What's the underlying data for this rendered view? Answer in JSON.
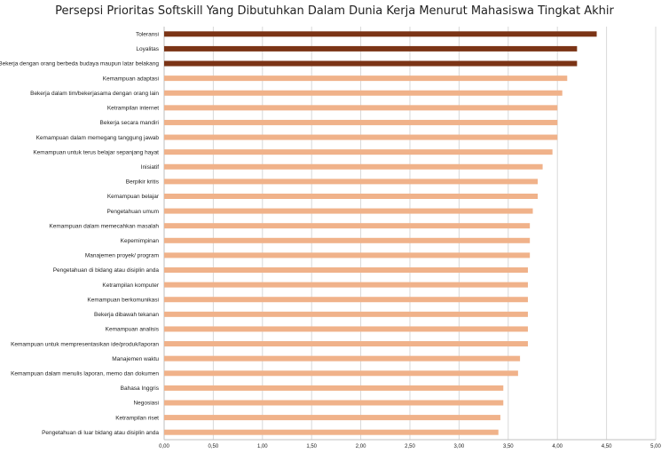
{
  "chart_data": {
    "type": "bar",
    "orientation": "horizontal",
    "title": "Persepsi Prioritas Softskill Yang Dibutuhkan Dalam Dunia Kerja Menurut Mahasiswa Tingkat Akhir",
    "xlabel": "",
    "ylabel": "",
    "xlim": [
      0,
      5
    ],
    "grid": "vertical",
    "legend": "none",
    "x_ticks": [
      "0,00",
      "0,50",
      "1,00",
      "1,50",
      "2,00",
      "2,50",
      "3,00",
      "3,50",
      "4,00",
      "4,50",
      "5,00"
    ],
    "colors": {
      "highlight": "#7b3416",
      "normal": "#f0b28a",
      "grid": "#d9d9d9",
      "axis": "#bfbfbf"
    },
    "categories": [
      "Toleransi",
      "Loyalitas",
      "Bekerja dengan orang berbeda budaya maupun latar belakang",
      "Kemampuan adaptasi",
      "Bekerja dalam tim/bekerjasama dengan orang lain",
      "Ketrampilan internet",
      "Bekerja secara mandiri",
      "Kemampuan dalam memegang tanggung jawab",
      "Kemampuan untuk terus belajar sepanjang hayat",
      "Inisiatif",
      "Berpikir kritis",
      "Kemampuan belajar",
      "Pengetahuan umum",
      "Kemampuan dalam memecahkan masalah",
      "Kepemimpinan",
      "Manajemen proyek/ program",
      "Pengetahuan di bidang atau disiplin anda",
      "Ketrampilan komputer",
      "Kemampuan berkomunikasi",
      "Bekerja dibawah tekanan",
      "Kemampuan analisis",
      "Kemampuan untuk mempresentasikan ide/produk/laporan",
      "Manajemen waktu",
      "Kemampuan dalam menulis laporan, memo dan dokumen",
      "Bahasa Inggris",
      "Negosiasi",
      "Ketrampilan riset",
      "Pengetahuan di luar bidang atau disiplin anda"
    ],
    "values": [
      4.4,
      4.2,
      4.2,
      4.1,
      4.05,
      4.0,
      4.0,
      4.0,
      3.95,
      3.85,
      3.8,
      3.8,
      3.75,
      3.72,
      3.72,
      3.72,
      3.7,
      3.7,
      3.7,
      3.7,
      3.7,
      3.7,
      3.62,
      3.6,
      3.45,
      3.45,
      3.42,
      3.4
    ],
    "highlighted": [
      true,
      true,
      true,
      false,
      false,
      false,
      false,
      false,
      false,
      false,
      false,
      false,
      false,
      false,
      false,
      false,
      false,
      false,
      false,
      false,
      false,
      false,
      false,
      false,
      false,
      false,
      false,
      false
    ]
  }
}
